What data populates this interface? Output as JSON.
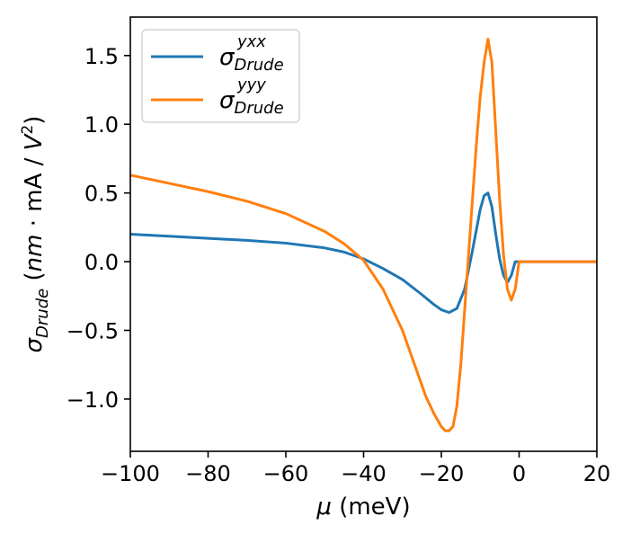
{
  "chart_data": {
    "type": "line",
    "title": "",
    "xlabel": "μ (meV)",
    "ylabel": "σDrude (nm · mA / V²)",
    "xlim": [
      -100,
      20
    ],
    "ylim": [
      -1.38,
      1.78
    ],
    "xticks": [
      -100,
      -80,
      -60,
      -40,
      -20,
      0,
      20
    ],
    "yticks": [
      -1.0,
      -0.5,
      0.0,
      0.5,
      1.0,
      1.5
    ],
    "xtick_labels": [
      "−100",
      "−80",
      "−60",
      "−40",
      "−20",
      "0",
      "20"
    ],
    "ytick_labels": [
      "−1.0",
      "−0.5",
      "0.0",
      "0.5",
      "1.0",
      "1.5"
    ],
    "grid": false,
    "legend_position": "top-left",
    "series": [
      {
        "name": "σ_Drude^yxx",
        "legend_base": "σ",
        "legend_sub": "Drude",
        "legend_sup": "yxx",
        "color": "#1f77b4",
        "x": [
          -100,
          -90,
          -80,
          -70,
          -60,
          -50,
          -45,
          -40,
          -35,
          -30,
          -25,
          -22,
          -20,
          -18,
          -16,
          -14,
          -12,
          -10,
          -9,
          -8,
          -7,
          -6,
          -5,
          -4,
          -3,
          -2,
          -1,
          0,
          20
        ],
        "y": [
          0.2,
          0.185,
          0.17,
          0.155,
          0.135,
          0.1,
          0.07,
          0.02,
          -0.05,
          -0.13,
          -0.24,
          -0.31,
          -0.35,
          -0.37,
          -0.34,
          -0.2,
          0.08,
          0.38,
          0.48,
          0.5,
          0.4,
          0.2,
          0.02,
          -0.1,
          -0.15,
          -0.1,
          0.0,
          0.0,
          0.0
        ]
      },
      {
        "name": "σ_Drude^yyy",
        "legend_base": "σ",
        "legend_sub": "Drude",
        "legend_sup": "yyy",
        "color": "#ff7f0e",
        "x": [
          -100,
          -90,
          -80,
          -70,
          -60,
          -50,
          -45,
          -40,
          -35,
          -30,
          -26,
          -24,
          -22,
          -20,
          -19,
          -18,
          -17,
          -16,
          -15,
          -14,
          -13,
          -12,
          -11,
          -10,
          -9,
          -8,
          -7,
          -6,
          -5,
          -4,
          -3,
          -2,
          -1,
          0,
          20
        ],
        "y": [
          0.63,
          0.57,
          0.51,
          0.44,
          0.35,
          0.22,
          0.13,
          0.01,
          -0.2,
          -0.5,
          -0.82,
          -0.98,
          -1.1,
          -1.2,
          -1.23,
          -1.23,
          -1.2,
          -1.05,
          -0.75,
          -0.35,
          0.05,
          0.45,
          0.85,
          1.2,
          1.45,
          1.62,
          1.45,
          0.95,
          0.45,
          0.05,
          -0.2,
          -0.28,
          -0.2,
          0.0,
          0.0
        ]
      }
    ]
  }
}
